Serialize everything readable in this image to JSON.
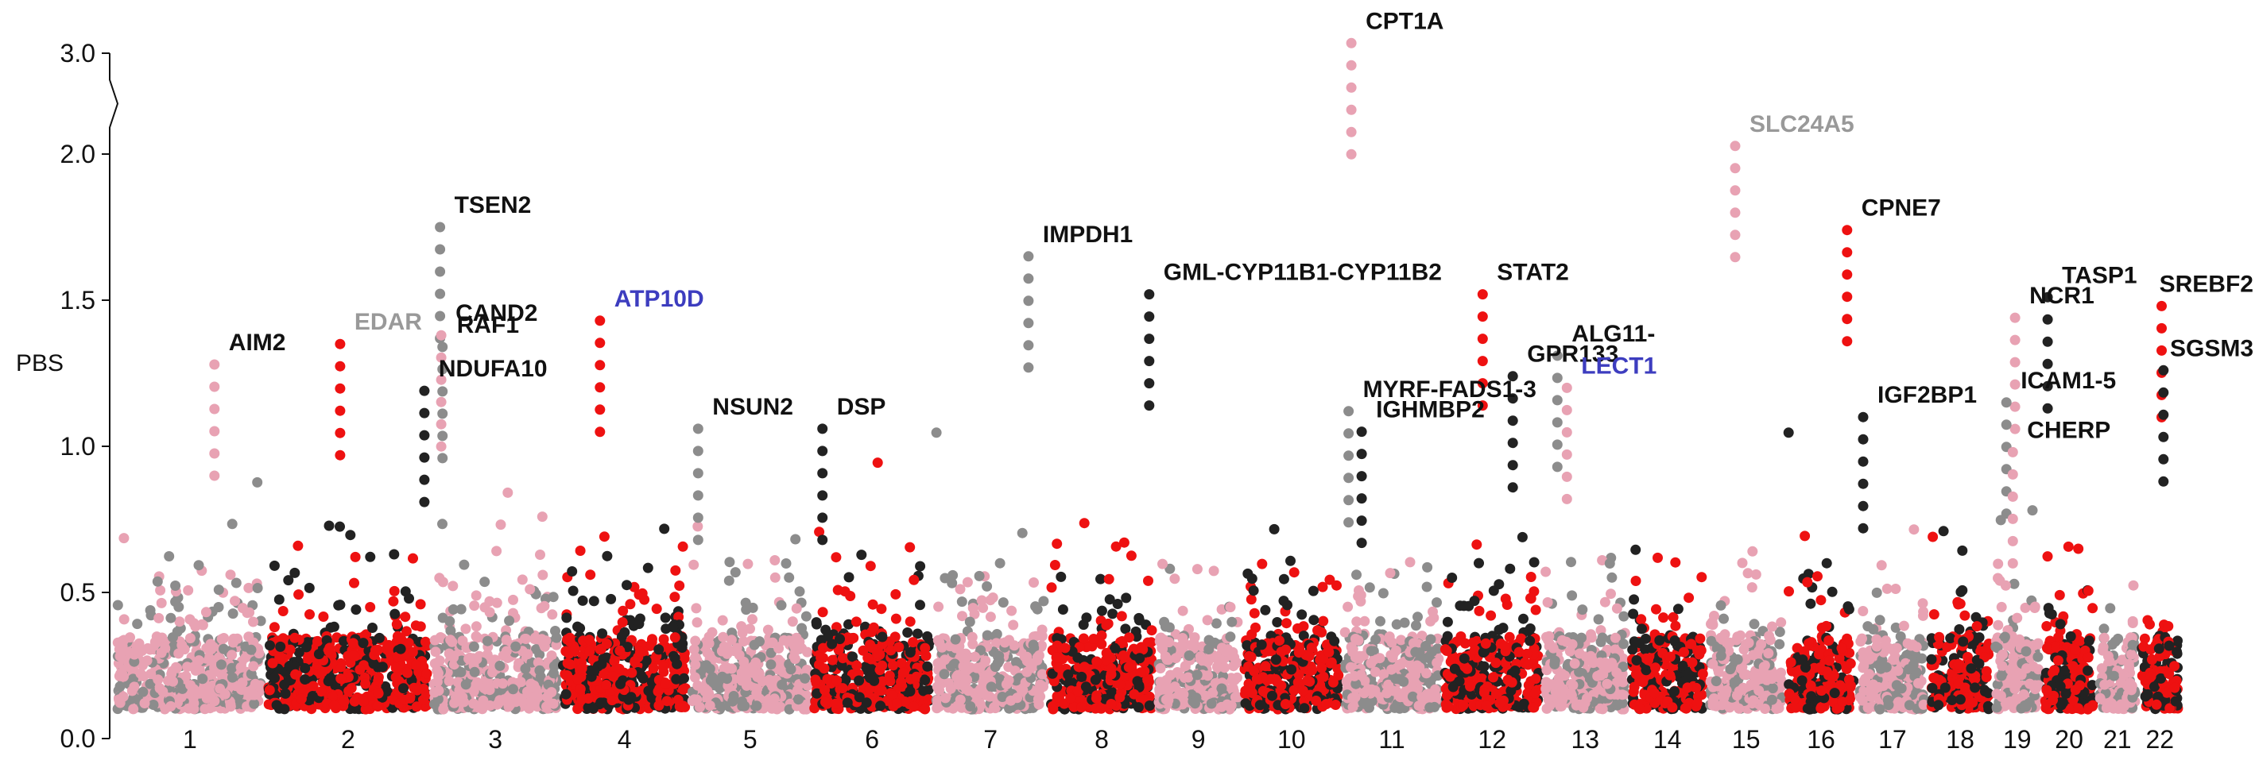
{
  "chart_data": {
    "type": "scatter",
    "subtype": "manhattan",
    "ylabel": "PBS",
    "y_ticks": [
      "0.0",
      "0.5",
      "1.0",
      "1.5",
      "2.0",
      "3.0"
    ],
    "y_axis_break": {
      "between": [
        2.0,
        3.0
      ]
    },
    "ylim": [
      0.0,
      3.0
    ],
    "colors": {
      "black": "#222222",
      "red": "#ee1111",
      "grey": "#8c8c8c",
      "pink": "#e8a2b3",
      "label_black": "#111111",
      "label_grey": "#999999",
      "label_blue": "#3d3dbf"
    },
    "chromosomes": [
      {
        "name": "1",
        "pal": [
          "pink",
          "grey"
        ],
        "h": 0.62,
        "w": 1.0
      },
      {
        "name": "2",
        "pal": [
          "red",
          "black"
        ],
        "h": 0.55,
        "w": 1.1
      },
      {
        "name": "3",
        "pal": [
          "pink",
          "grey"
        ],
        "h": 0.58,
        "w": 0.85
      },
      {
        "name": "4",
        "pal": [
          "red",
          "black"
        ],
        "h": 0.65,
        "w": 0.85
      },
      {
        "name": "5",
        "pal": [
          "pink",
          "grey"
        ],
        "h": 0.55,
        "w": 0.8
      },
      {
        "name": "6",
        "pal": [
          "red",
          "black"
        ],
        "h": 0.62,
        "w": 0.8
      },
      {
        "name": "7",
        "pal": [
          "pink",
          "grey"
        ],
        "h": 0.6,
        "w": 0.75
      },
      {
        "name": "8",
        "pal": [
          "red",
          "black"
        ],
        "h": 0.55,
        "w": 0.7
      },
      {
        "name": "9",
        "pal": [
          "pink",
          "grey"
        ],
        "h": 0.5,
        "w": 0.55
      },
      {
        "name": "10",
        "pal": [
          "red",
          "black"
        ],
        "h": 0.55,
        "w": 0.65
      },
      {
        "name": "11",
        "pal": [
          "pink",
          "grey"
        ],
        "h": 0.6,
        "w": 0.65
      },
      {
        "name": "12",
        "pal": [
          "red",
          "black"
        ],
        "h": 0.62,
        "w": 0.65
      },
      {
        "name": "13",
        "pal": [
          "pink",
          "grey"
        ],
        "h": 0.55,
        "w": 0.55
      },
      {
        "name": "14",
        "pal": [
          "red",
          "black"
        ],
        "h": 0.55,
        "w": 0.5
      },
      {
        "name": "15",
        "pal": [
          "pink",
          "grey"
        ],
        "h": 0.58,
        "w": 0.5
      },
      {
        "name": "16",
        "pal": [
          "red",
          "black"
        ],
        "h": 0.6,
        "w": 0.45
      },
      {
        "name": "17",
        "pal": [
          "pink",
          "grey"
        ],
        "h": 0.55,
        "w": 0.45
      },
      {
        "name": "18",
        "pal": [
          "red",
          "black"
        ],
        "h": 0.55,
        "w": 0.4
      },
      {
        "name": "19",
        "pal": [
          "pink",
          "grey"
        ],
        "h": 0.65,
        "w": 0.3
      },
      {
        "name": "20",
        "pal": [
          "red",
          "black"
        ],
        "h": 0.58,
        "w": 0.33
      },
      {
        "name": "21",
        "pal": [
          "pink",
          "grey"
        ],
        "h": 0.45,
        "w": 0.25
      },
      {
        "name": "22",
        "pal": [
          "red",
          "black"
        ],
        "h": 0.62,
        "w": 0.25
      }
    ],
    "highlights": [
      {
        "label": "AIM2",
        "chr": "1",
        "pos": 0.67,
        "pbs": 1.28,
        "color": "pink",
        "label_color": "label_black"
      },
      {
        "label": "EDAR",
        "chr": "2",
        "pos": 0.45,
        "pbs": 1.35,
        "color": "red",
        "label_color": "label_grey"
      },
      {
        "label": "NDUFA10",
        "chr": "2",
        "pos": 0.98,
        "pbs": 1.19,
        "color": "black",
        "label_color": "label_black"
      },
      {
        "label": "TSEN2",
        "chr": "3",
        "pos": 0.05,
        "pbs": 1.75,
        "color": "grey",
        "label_color": "label_black"
      },
      {
        "label": "CAND2",
        "chr": "3",
        "pos": 0.06,
        "pbs": 1.38,
        "color": "pink",
        "label_color": "label_black"
      },
      {
        "label": "RAF1",
        "chr": "3",
        "pos": 0.07,
        "pbs": 1.34,
        "color": "grey",
        "label_color": "label_black"
      },
      {
        "label": "ATP10D",
        "chr": "4",
        "pos": 0.3,
        "pbs": 1.43,
        "color": "red",
        "label_color": "label_blue"
      },
      {
        "label": "NSUN2",
        "chr": "5",
        "pos": 0.05,
        "pbs": 1.06,
        "color": "grey",
        "label_color": "label_black"
      },
      {
        "label": "DSP",
        "chr": "6",
        "pos": 0.07,
        "pbs": 1.06,
        "color": "black",
        "label_color": "label_black"
      },
      {
        "label": "IMPDH1",
        "chr": "7",
        "pos": 0.85,
        "pbs": 1.65,
        "color": "grey",
        "label_color": "label_black"
      },
      {
        "label": "GML-CYP11B1-CYP11B2",
        "chr": "8",
        "pos": 0.97,
        "pbs": 1.52,
        "color": "black",
        "label_color": "label_black"
      },
      {
        "label": "MYRF-FADS1-3",
        "chr": "11",
        "pos": 0.04,
        "pbs": 1.12,
        "color": "grey",
        "label_color": "label_black"
      },
      {
        "label": "IGHMBP2",
        "chr": "11",
        "pos": 0.18,
        "pbs": 1.05,
        "color": "black",
        "label_color": "label_black"
      },
      {
        "label": "CPT1A",
        "chr": "11",
        "pos": 0.07,
        "pbs": 3.1,
        "color": "pink",
        "label_color": "label_black"
      },
      {
        "label": "STAT2",
        "chr": "12",
        "pos": 0.4,
        "pbs": 1.52,
        "color": "red",
        "label_color": "label_black"
      },
      {
        "label": "GPR133",
        "chr": "12",
        "pos": 0.72,
        "pbs": 1.24,
        "color": "black",
        "label_color": "label_black"
      },
      {
        "label": "ALG11-",
        "chr": "13",
        "pos": 0.15,
        "pbs": 1.31,
        "color": "grey",
        "label_color": "label_black"
      },
      {
        "label": "LECT1",
        "chr": "13",
        "pos": 0.27,
        "pbs": 1.2,
        "color": "pink",
        "label_color": "label_blue"
      },
      {
        "label": "SLC24A5",
        "chr": "15",
        "pos": 0.35,
        "pbs": 2.08,
        "color": "pink",
        "label_color": "label_grey"
      },
      {
        "label": "CPNE7",
        "chr": "16",
        "pos": 0.9,
        "pbs": 1.74,
        "color": "red",
        "label_color": "label_black"
      },
      {
        "label": "IGF2BP1",
        "chr": "17",
        "pos": 0.05,
        "pbs": 1.1,
        "color": "black",
        "label_color": "label_black"
      },
      {
        "label": "NCR1",
        "chr": "19",
        "pos": 0.45,
        "pbs": 1.44,
        "color": "pink",
        "label_color": "label_black"
      },
      {
        "label": "TASP1",
        "chr": "20",
        "pos": 0.05,
        "pbs": 1.51,
        "color": "black",
        "label_color": "label_black"
      },
      {
        "label": "ICAM1-5",
        "chr": "19",
        "pos": 0.25,
        "pbs": 1.15,
        "color": "grey",
        "label_color": "label_black"
      },
      {
        "label": "CHERP",
        "chr": "19",
        "pos": 0.4,
        "pbs": 0.98,
        "color": "pink",
        "label_color": "label_black"
      },
      {
        "label": "SREBF2",
        "chr": "22",
        "pos": 0.55,
        "pbs": 1.48,
        "color": "red",
        "label_color": "label_black"
      },
      {
        "label": "SGSM3",
        "chr": "22",
        "pos": 0.6,
        "pbs": 1.26,
        "color": "black",
        "label_color": "label_black"
      }
    ]
  }
}
